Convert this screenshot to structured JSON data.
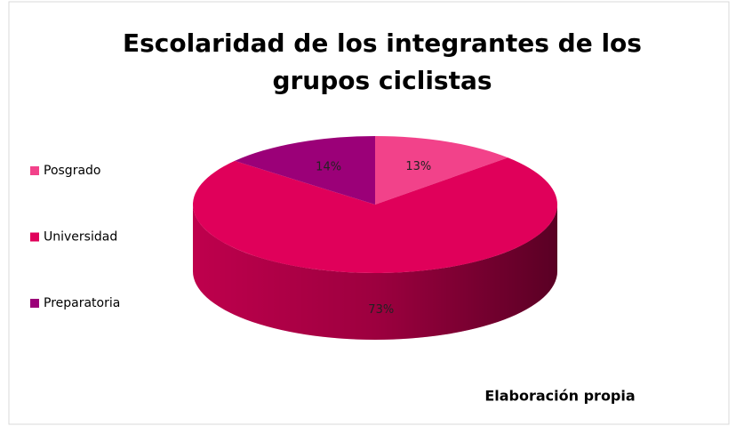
{
  "chart_data": {
    "type": "pie",
    "title": "Escolaridad de los integrantes de los grupos ciclistas",
    "categories": [
      "Posgrado",
      "Universidad",
      "Preparatoria"
    ],
    "values": [
      13,
      73,
      14
    ],
    "value_labels": [
      "13%",
      "73%",
      "14%"
    ],
    "colors": [
      "#f2428a",
      "#e0005a",
      "#9b0078"
    ],
    "legend": "left",
    "annotation": "Elaboración propia"
  }
}
